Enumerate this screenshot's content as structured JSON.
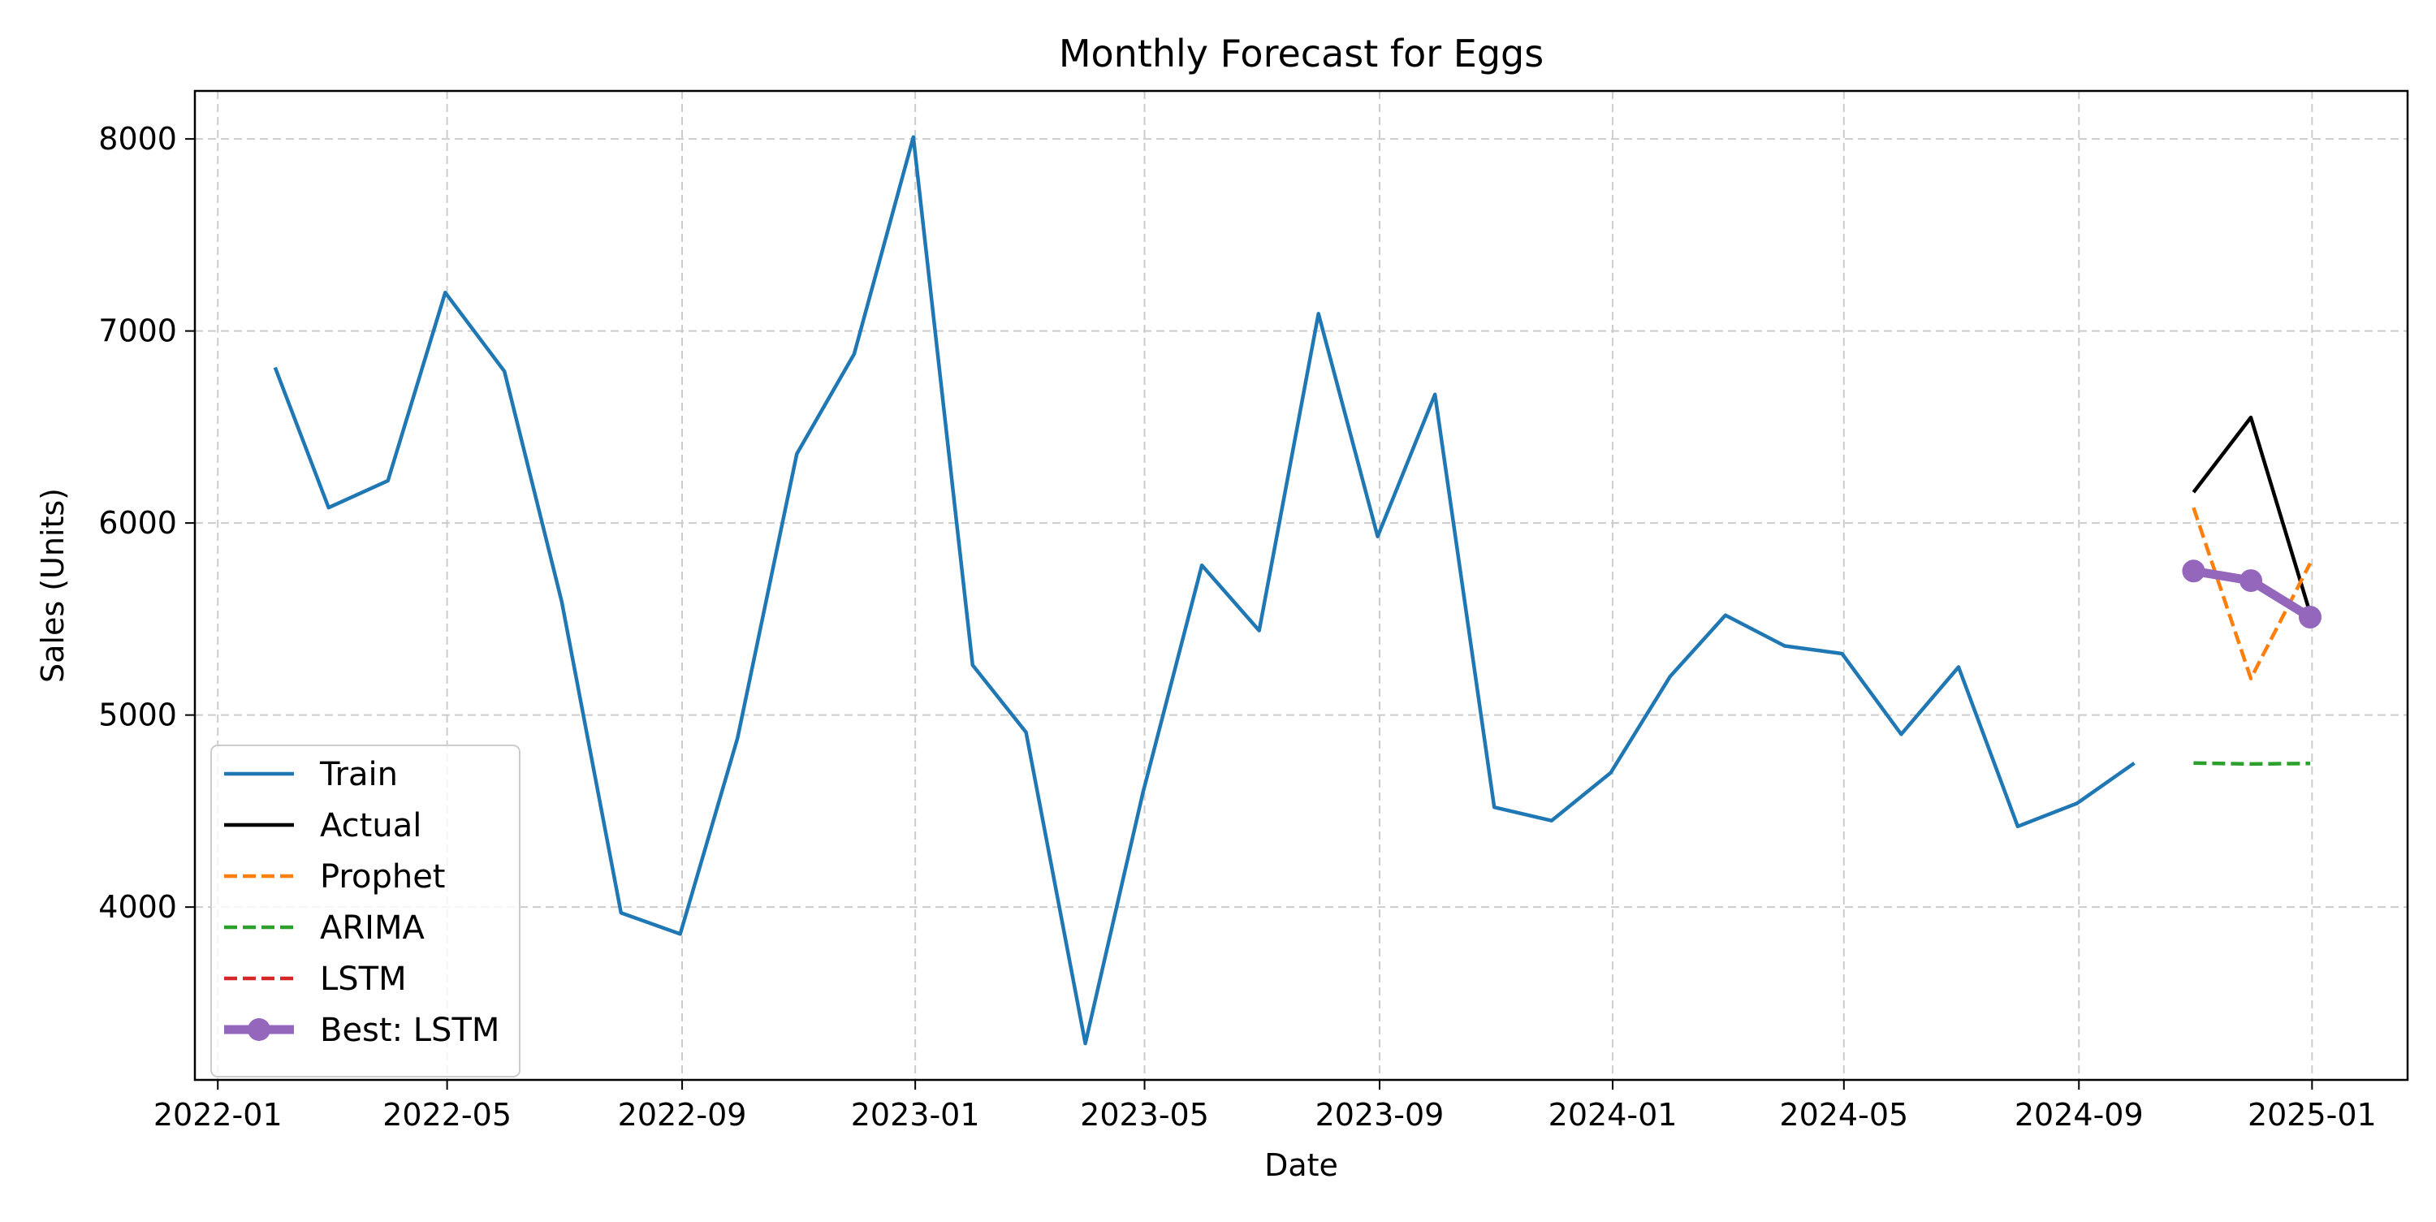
{
  "chart_data": {
    "type": "line",
    "title": "Monthly Forecast for Eggs",
    "xlabel": "Date",
    "ylabel": "Sales (Units)",
    "grid": true,
    "legend_position": "lower-left",
    "xlim": [
      "2021-12-20",
      "2025-02-20"
    ],
    "ylim": [
      3100,
      8250
    ],
    "x_ticks": [
      "2022-01",
      "2022-05",
      "2022-09",
      "2023-01",
      "2023-05",
      "2023-09",
      "2024-01",
      "2024-05",
      "2024-09",
      "2025-01"
    ],
    "y_ticks": [
      4000,
      5000,
      6000,
      7000,
      8000
    ],
    "series": [
      {
        "name": "Train",
        "color": "#1f77b4",
        "style": "solid",
        "x": [
          "2022-01-31",
          "2022-02-28",
          "2022-03-31",
          "2022-04-30",
          "2022-05-31",
          "2022-06-30",
          "2022-07-31",
          "2022-08-31",
          "2022-09-30",
          "2022-10-31",
          "2022-11-30",
          "2022-12-31",
          "2023-01-31",
          "2023-02-28",
          "2023-03-31",
          "2023-04-30",
          "2023-05-31",
          "2023-06-30",
          "2023-07-31",
          "2023-08-31",
          "2023-09-30",
          "2023-10-31",
          "2023-11-30",
          "2023-12-31",
          "2024-01-31",
          "2024-02-29",
          "2024-03-31",
          "2024-04-30",
          "2024-05-31",
          "2024-06-30",
          "2024-07-31",
          "2024-08-31",
          "2024-09-30"
        ],
        "values": [
          6810,
          6080,
          6220,
          7200,
          6790,
          5590,
          3970,
          3860,
          4880,
          6360,
          6880,
          8010,
          5260,
          4910,
          3290,
          4590,
          5780,
          5440,
          7090,
          5930,
          6670,
          4520,
          4450,
          4700,
          5200,
          5520,
          5360,
          5320,
          4900,
          5250,
          4420,
          4540,
          4750
        ]
      },
      {
        "name": "Actual",
        "color": "#000000",
        "style": "solid",
        "x": [
          "2024-10-31",
          "2024-11-30",
          "2024-12-31"
        ],
        "values": [
          6160,
          6550,
          5530
        ]
      },
      {
        "name": "Prophet",
        "color": "#ff7f0e",
        "style": "dashed",
        "x": [
          "2024-10-31",
          "2024-11-30",
          "2024-12-31"
        ],
        "values": [
          6080,
          5190,
          5790
        ]
      },
      {
        "name": "ARIMA",
        "color": "#2ca02c",
        "style": "dashed",
        "x": [
          "2024-10-31",
          "2024-11-30",
          "2024-12-31"
        ],
        "values": [
          4750,
          4745,
          4748
        ]
      },
      {
        "name": "LSTM",
        "color": "#d62728",
        "style": "dashed",
        "x": [
          "2024-10-31",
          "2024-11-30",
          "2024-12-31"
        ],
        "values": [
          5750,
          5700,
          5510
        ]
      },
      {
        "name": "Best: LSTM",
        "color": "#9467bd",
        "style": "thick-markers",
        "x": [
          "2024-10-31",
          "2024-11-30",
          "2024-12-31"
        ],
        "values": [
          5750,
          5700,
          5510
        ]
      }
    ]
  }
}
